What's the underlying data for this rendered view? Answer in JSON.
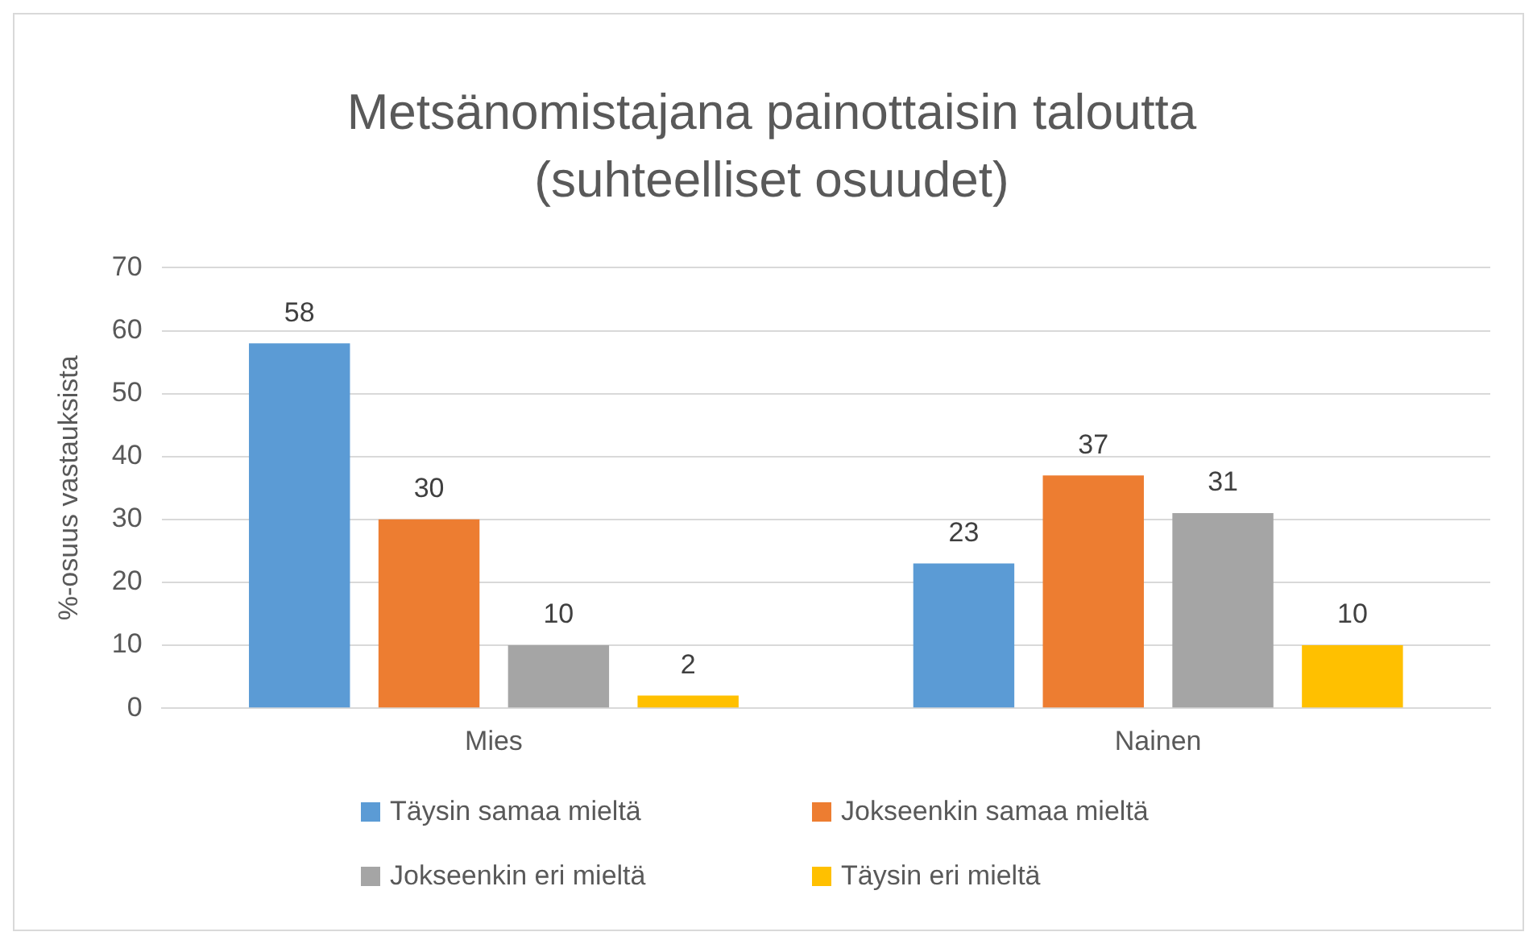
{
  "chart_data": {
    "type": "bar",
    "title": "Metsänomistajana painottaisin taloutta (suhteelliset osuudet)",
    "ylabel": "%-osuus vastauksista",
    "categories": [
      "Mies",
      "Nainen"
    ],
    "series": [
      {
        "name": "Täysin samaa mieltä",
        "color": "#5b9bd5",
        "values": [
          58,
          23
        ]
      },
      {
        "name": "Jokseenkin samaa mieltä",
        "color": "#ed7d31",
        "values": [
          30,
          37
        ]
      },
      {
        "name": "Jokseenkin eri mieltä",
        "color": "#a5a5a5",
        "values": [
          10,
          31
        ]
      },
      {
        "name": "Täysin eri mieltä",
        "color": "#ffc000",
        "values": [
          2,
          10
        ]
      }
    ],
    "ylim": [
      0,
      70
    ],
    "yticks": [
      0,
      10,
      20,
      30,
      40,
      50,
      60,
      70
    ],
    "grid": "y",
    "legend": "bottom",
    "data_labels": true
  }
}
